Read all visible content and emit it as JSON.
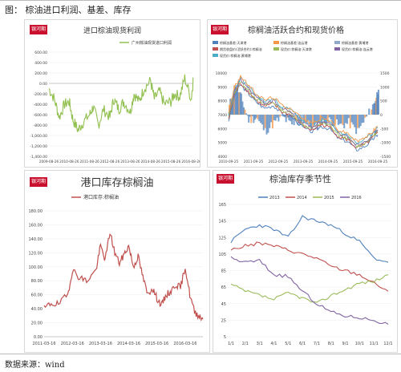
{
  "figure": {
    "title": "图：   棕油进口利润、基差、库存",
    "source": "数据来源：wind"
  },
  "panels": {
    "p1": {
      "logo": "银河期货"
    },
    "p2": {
      "logo": "银河期货"
    },
    "p3": {
      "logo": "银河期货"
    },
    "p4": {
      "logo": "银河期货"
    }
  },
  "colors": {
    "import_profit": "#92c050",
    "inventory": "#c0504d",
    "season_2013": "#4f81bd",
    "season_2014": "#c0504d",
    "season_2015": "#9bbb59",
    "season_2016": "#8064a2",
    "basis_bar": "#4f81bd",
    "basis_bar2": "#f79646",
    "price_lines": [
      "#4f81bd",
      "#c0504d",
      "#9bbb59",
      "#8064a2",
      "#4bacc6",
      "#f79646"
    ],
    "logo": "#c8102e"
  },
  "chart_data": [
    {
      "id": "import-profit",
      "type": "line",
      "title": "进口棕油现货利润",
      "series": [
        {
          "name": "广州棕油现货进口利润",
          "x": [
            "2009-08-26",
            "2009-12-01",
            "2010-03-01",
            "2010-06-01",
            "2010-08-26",
            "2010-11-01",
            "2011-02-01",
            "2011-05-01",
            "2011-08-26",
            "2011-11-01",
            "2012-02-01",
            "2012-05-01",
            "2012-08-26",
            "2012-11-01",
            "2013-02-01",
            "2013-05-01",
            "2013-08-26",
            "2013-11-01",
            "2014-02-01",
            "2014-05-01",
            "2014-08-26",
            "2014-11-01",
            "2015-02-01",
            "2015-05-01",
            "2015-08-26",
            "2015-11-01",
            "2016-02-01",
            "2016-05-01",
            "2016-08-26",
            "2016-10-01"
          ],
          "values": [
            -100,
            -300,
            -650,
            -400,
            -350,
            -700,
            -900,
            -750,
            -600,
            -450,
            -800,
            -500,
            -650,
            -300,
            -500,
            -350,
            -550,
            -200,
            -350,
            -100,
            50,
            -300,
            -150,
            -400,
            -350,
            -200,
            -250,
            100,
            -300,
            100
          ]
        }
      ],
      "xticks": [
        "2009-08-26",
        "2010-08-26",
        "2011-08-26",
        "2012-08-26",
        "2013-08-26",
        "2014-08-26",
        "2015-08-26",
        "2016-08-26"
      ],
      "yticks": [
        "600.00",
        "400.00",
        "200.00",
        "0.00",
        "-200.00",
        "-400.00",
        "-600.00",
        "-800.00",
        "-1,000.00",
        "-1,200.00",
        "-1,400.00"
      ],
      "ylim": [
        -1400,
        600
      ]
    },
    {
      "id": "basis-price",
      "type": "line",
      "title": "棕榈油活跃合约和现货价格",
      "legend": [
        "棕榈油基差:天津港",
        "棕榈油基差:连云港",
        "棕榈油基差:黄埔港",
        "期货收盘价(活跃合约):棕榈油",
        "现货价:棕榈油:天津港",
        "现货价:棕榈油:连云港",
        "现货价:棕榈油:黄埔港"
      ],
      "xticks": [
        "2010-09-25",
        "2011-09-25",
        "2012-09-25",
        "2013-09-25",
        "2014-09-25",
        "2015-09-25",
        "2016-09-25"
      ],
      "yticks_left": [
        "10000",
        "9000",
        "8000",
        "7000",
        "6000",
        "5000",
        "4000"
      ],
      "yticks_right": [
        "1500",
        "1000",
        "500",
        "0",
        "-500",
        "-1000",
        "-1500"
      ],
      "ylim_left": [
        4000,
        10000
      ],
      "ylim_right": [
        -1500,
        1500
      ],
      "price_x": [
        0,
        0.04,
        0.08,
        0.13,
        0.18,
        0.24,
        0.3,
        0.36,
        0.42,
        0.5,
        0.56,
        0.62,
        0.68,
        0.74,
        0.8,
        0.86,
        0.92,
        0.97,
        1
      ],
      "price_values": [
        6800,
        8600,
        9400,
        8800,
        8200,
        7700,
        7900,
        7300,
        7100,
        6300,
        6000,
        6400,
        6200,
        5500,
        5300,
        4700,
        5000,
        5500,
        5800
      ],
      "basis_values": [
        300,
        1100,
        600,
        -200,
        -100,
        -600,
        -300,
        -100,
        -400,
        -200,
        -500,
        -300,
        -200,
        -400,
        -300,
        -600,
        -100,
        400,
        900
      ]
    },
    {
      "id": "port-inventory",
      "type": "line",
      "title": "港口库存棕榈油",
      "series": [
        {
          "name": "港口库存:棕榈油",
          "x": [
            "2011-03-16",
            "2011-06-16",
            "2011-09-16",
            "2012-01-16",
            "2012-03-16",
            "2012-06-16",
            "2012-09-16",
            "2013-01-16",
            "2013-03-16",
            "2013-05-16",
            "2013-07-16",
            "2013-09-16",
            "2013-11-16",
            "2014-01-16",
            "2014-03-16",
            "2014-05-16",
            "2014-07-16",
            "2014-09-16",
            "2014-11-16",
            "2015-01-16",
            "2015-03-16",
            "2015-05-16",
            "2015-07-16",
            "2015-09-16",
            "2015-11-16",
            "2016-01-16",
            "2016-03-16",
            "2016-05-16",
            "2016-07-16",
            "2016-09-16",
            "2016-11-01"
          ],
          "values": [
            40,
            48,
            46,
            60,
            95,
            85,
            80,
            95,
            130,
            110,
            150,
            120,
            105,
            118,
            130,
            100,
            115,
            85,
            60,
            70,
            55,
            45,
            60,
            65,
            75,
            70,
            100,
            60,
            35,
            30,
            25
          ]
        }
      ],
      "xticks": [
        "2011-03-16",
        "2012-03-16",
        "2013-03-16",
        "2014-03-16",
        "2015-03-16",
        "2016-03-16"
      ],
      "yticks": [
        "180.00",
        "160.00",
        "140.00",
        "120.00",
        "100.00",
        "80.00",
        "60.00",
        "40.00",
        "20.00",
        "0.00"
      ],
      "ylim": [
        0,
        180
      ]
    },
    {
      "id": "inventory-seasonality",
      "type": "line",
      "title": "棕油库存季节性",
      "categories": [
        "1/1",
        "2/1",
        "3/1",
        "4/1",
        "5/1",
        "6/1",
        "7/1",
        "8/1",
        "9/1",
        "10/1",
        "11/1",
        "12/1"
      ],
      "series": [
        {
          "name": "2013",
          "values": [
            120,
            135,
            140,
            135,
            125,
            150,
            145,
            140,
            130,
            120,
            100,
            95
          ]
        },
        {
          "name": "2014",
          "values": [
            110,
            115,
            118,
            115,
            110,
            105,
            100,
            90,
            85,
            80,
            70,
            60
          ]
        },
        {
          "name": "2015",
          "values": [
            68,
            60,
            55,
            50,
            58,
            52,
            45,
            55,
            62,
            70,
            72,
            80
          ]
        },
        {
          "name": "2016",
          "values": [
            100,
            95,
            97,
            80,
            78,
            60,
            45,
            35,
            30,
            28,
            25,
            20
          ]
        }
      ],
      "yticks": [
        "165",
        "145",
        "125",
        "105",
        "85",
        "65",
        "45",
        "25",
        "5"
      ],
      "ylim": [
        5,
        165
      ]
    }
  ]
}
